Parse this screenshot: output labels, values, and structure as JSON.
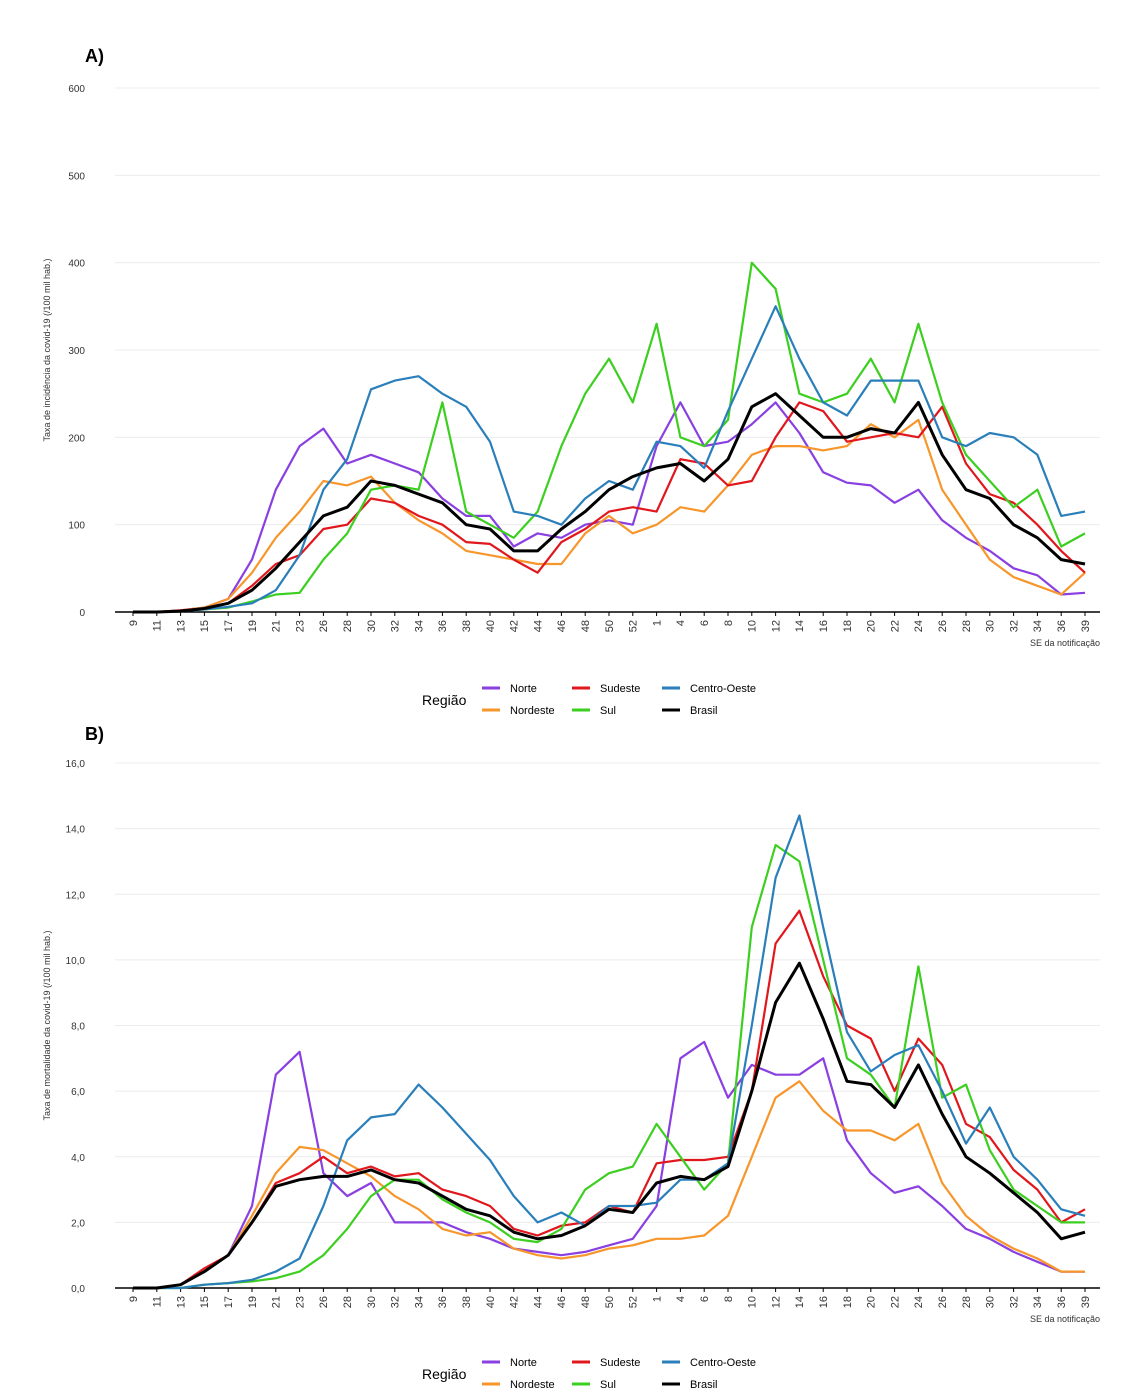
{
  "chart_data": [
    {
      "type": "line",
      "title": "A)",
      "ylabel": "Taxa de incidência da covid-19 (/100 mil hab.)",
      "xlabel": "SE da notificação",
      "legend_title": "Região",
      "categories": [
        "9",
        "11",
        "13",
        "15",
        "17",
        "19",
        "21",
        "23",
        "26",
        "28",
        "30",
        "32",
        "34",
        "36",
        "38",
        "40",
        "42",
        "44",
        "46",
        "48",
        "50",
        "52",
        "1",
        "4",
        "6",
        "8",
        "10",
        "12",
        "14",
        "16",
        "18",
        "20",
        "22",
        "24",
        "26",
        "28",
        "30",
        "32",
        "34",
        "36",
        "39"
      ],
      "ylim": [
        0,
        600
      ],
      "yticks": [
        0,
        100,
        200,
        300,
        400,
        500,
        600
      ],
      "grid": true,
      "series": [
        {
          "name": "Norte",
          "color": "#8a3fe0",
          "values": [
            0,
            0,
            2,
            5,
            15,
            60,
            140,
            190,
            210,
            170,
            180,
            170,
            160,
            130,
            110,
            110,
            75,
            90,
            85,
            100,
            105,
            100,
            190,
            240,
            190,
            195,
            215,
            240,
            205,
            160,
            148,
            145,
            125,
            140,
            105,
            85,
            70,
            50,
            42,
            20,
            22
          ]
        },
        {
          "name": "Nordeste",
          "color": "#f7962b",
          "values": [
            0,
            0,
            2,
            5,
            15,
            45,
            85,
            115,
            150,
            145,
            155,
            125,
            105,
            90,
            70,
            65,
            60,
            55,
            55,
            90,
            110,
            90,
            100,
            120,
            115,
            145,
            180,
            190,
            190,
            185,
            190,
            215,
            200,
            220,
            140,
            100,
            60,
            40,
            30,
            20,
            45
          ]
        },
        {
          "name": "Sudeste",
          "color": "#e0171c",
          "values": [
            0,
            0,
            2,
            4,
            10,
            30,
            55,
            65,
            95,
            100,
            130,
            125,
            110,
            100,
            80,
            78,
            60,
            45,
            80,
            95,
            115,
            120,
            115,
            175,
            170,
            145,
            150,
            200,
            240,
            230,
            195,
            200,
            205,
            200,
            235,
            170,
            135,
            125,
            100,
            70,
            45
          ]
        },
        {
          "name": "Sul",
          "color": "#3ccf20",
          "values": [
            0,
            0,
            1,
            3,
            5,
            12,
            20,
            22,
            60,
            90,
            140,
            145,
            140,
            240,
            115,
            100,
            85,
            115,
            190,
            250,
            290,
            240,
            330,
            200,
            190,
            220,
            400,
            370,
            250,
            240,
            250,
            290,
            240,
            330,
            240,
            180,
            150,
            120,
            140,
            75,
            90
          ]
        },
        {
          "name": "Centro-Oeste",
          "color": "#2a7fba",
          "values": [
            0,
            0,
            1,
            3,
            6,
            10,
            25,
            65,
            140,
            175,
            255,
            265,
            270,
            250,
            235,
            195,
            115,
            110,
            100,
            130,
            150,
            140,
            195,
            190,
            165,
            230,
            290,
            350,
            290,
            240,
            225,
            265,
            265,
            265,
            200,
            190,
            205,
            200,
            180,
            110,
            115
          ]
        },
        {
          "name": "Brasil",
          "color": "#000000",
          "values": [
            0,
            0,
            1,
            4,
            10,
            25,
            50,
            80,
            110,
            120,
            150,
            145,
            135,
            125,
            100,
            95,
            70,
            70,
            95,
            115,
            140,
            155,
            165,
            170,
            150,
            175,
            235,
            250,
            225,
            200,
            200,
            210,
            205,
            240,
            180,
            140,
            130,
            100,
            85,
            60,
            55
          ]
        }
      ]
    },
    {
      "type": "line",
      "title": "B)",
      "ylabel": "Taxa de mortalidade da covid-19 (/100 mil hab.)",
      "xlabel": "SE da notificação",
      "legend_title": "Região",
      "categories": [
        "9",
        "11",
        "13",
        "15",
        "17",
        "19",
        "21",
        "23",
        "26",
        "28",
        "30",
        "32",
        "34",
        "36",
        "38",
        "40",
        "42",
        "44",
        "46",
        "48",
        "50",
        "52",
        "1",
        "4",
        "6",
        "8",
        "10",
        "12",
        "14",
        "16",
        "18",
        "20",
        "22",
        "24",
        "26",
        "28",
        "30",
        "32",
        "34",
        "36",
        "39"
      ],
      "ylim": [
        0,
        16
      ],
      "yticks": [
        {
          "value": 0,
          "label": "0,0"
        },
        {
          "value": 2,
          "label": "2,0"
        },
        {
          "value": 4,
          "label": "4,0"
        },
        {
          "value": 6,
          "label": "6,0"
        },
        {
          "value": 8,
          "label": "8,0"
        },
        {
          "value": 10,
          "label": "10,0"
        },
        {
          "value": 12,
          "label": "12,0"
        },
        {
          "value": 14,
          "label": "14,0"
        },
        {
          "value": 16,
          "label": "16,0"
        }
      ],
      "grid": true,
      "series": [
        {
          "name": "Norte",
          "color": "#8a3fe0",
          "values": [
            0,
            0,
            0.1,
            0.5,
            1,
            2.5,
            6.5,
            7.2,
            3.5,
            2.8,
            3.2,
            2,
            2,
            2,
            1.7,
            1.5,
            1.2,
            1.1,
            1,
            1.1,
            1.3,
            1.5,
            2.5,
            7,
            7.5,
            5.8,
            6.8,
            6.5,
            6.5,
            7,
            4.5,
            3.5,
            2.9,
            3.1,
            2.5,
            1.8,
            1.5,
            1.1,
            0.8,
            0.5,
            0.5
          ]
        },
        {
          "name": "Nordeste",
          "color": "#f7962b",
          "values": [
            0,
            0,
            0.1,
            0.5,
            1,
            2.2,
            3.5,
            4.3,
            4.2,
            3.8,
            3.4,
            2.8,
            2.4,
            1.8,
            1.6,
            1.7,
            1.2,
            1,
            0.9,
            1,
            1.2,
            1.3,
            1.5,
            1.5,
            1.6,
            2.2,
            4,
            5.8,
            6.3,
            5.4,
            4.8,
            4.8,
            4.5,
            5,
            3.2,
            2.2,
            1.6,
            1.2,
            0.9,
            0.5,
            0.5
          ]
        },
        {
          "name": "Sudeste",
          "color": "#e0171c",
          "values": [
            0,
            0,
            0.1,
            0.6,
            1,
            2,
            3.2,
            3.5,
            4,
            3.5,
            3.7,
            3.4,
            3.5,
            3,
            2.8,
            2.5,
            1.8,
            1.6,
            1.9,
            2,
            2.5,
            2.3,
            3.8,
            3.9,
            3.9,
            4,
            6,
            10.5,
            11.5,
            9.5,
            8,
            7.6,
            6,
            7.6,
            6.8,
            5,
            4.6,
            3.6,
            3,
            2,
            2.4
          ]
        },
        {
          "name": "Sul",
          "color": "#3ccf20",
          "values": [
            0,
            0,
            0,
            0.1,
            0.15,
            0.2,
            0.3,
            0.5,
            1,
            1.8,
            2.8,
            3.3,
            3.3,
            2.7,
            2.3,
            2,
            1.5,
            1.4,
            1.8,
            3,
            3.5,
            3.7,
            5,
            4,
            3,
            3.8,
            11,
            13.5,
            13,
            10,
            7,
            6.5,
            5.5,
            9.8,
            5.8,
            6.2,
            4.2,
            3,
            2.5,
            2,
            2
          ]
        },
        {
          "name": "Centro-Oeste",
          "color": "#2a7fba",
          "values": [
            0,
            0,
            0,
            0.1,
            0.15,
            0.25,
            0.5,
            0.9,
            2.5,
            4.5,
            5.2,
            5.3,
            6.2,
            5.5,
            4.7,
            3.9,
            2.8,
            2,
            2.3,
            1.9,
            2.5,
            2.5,
            2.6,
            3.3,
            3.3,
            3.8,
            8,
            12.5,
            14.4,
            11,
            7.8,
            6.6,
            7.1,
            7.4,
            6,
            4.4,
            5.5,
            4,
            3.3,
            2.4,
            2.2
          ]
        },
        {
          "name": "Brasil",
          "color": "#000000",
          "values": [
            0,
            0,
            0.1,
            0.5,
            1,
            2,
            3.1,
            3.3,
            3.4,
            3.4,
            3.6,
            3.3,
            3.2,
            2.8,
            2.4,
            2.2,
            1.7,
            1.5,
            1.6,
            1.9,
            2.4,
            2.3,
            3.2,
            3.4,
            3.3,
            3.7,
            6,
            8.7,
            9.9,
            8.2,
            6.3,
            6.2,
            5.5,
            6.8,
            5.3,
            4,
            3.5,
            2.9,
            2.3,
            1.5,
            1.7
          ]
        }
      ]
    }
  ]
}
